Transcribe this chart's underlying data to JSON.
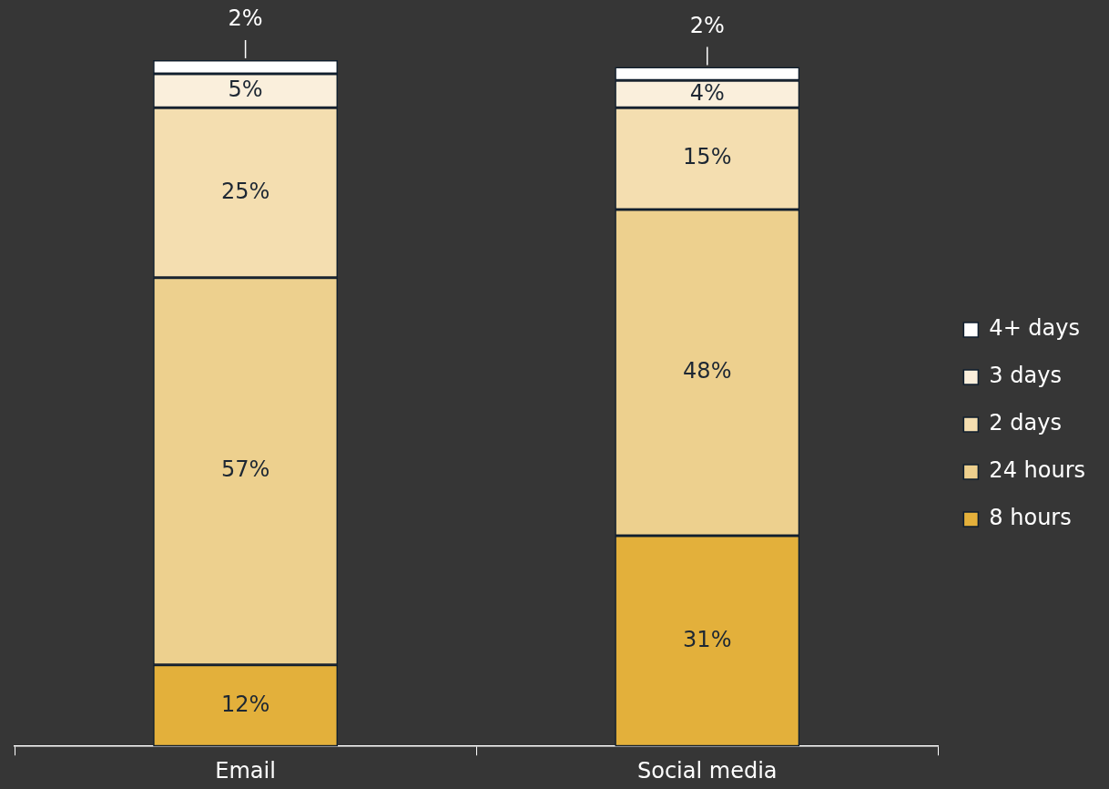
{
  "chart_data": {
    "type": "bar",
    "stacked": true,
    "categories": [
      "Email",
      "Social media"
    ],
    "series": [
      {
        "name": "8 hours",
        "color": "#e3b03b",
        "values": [
          12,
          31
        ],
        "value_labels": [
          "12%",
          "31%"
        ]
      },
      {
        "name": "24 hours",
        "color": "#edd08e",
        "values": [
          57,
          48
        ],
        "value_labels": [
          "57%",
          "48%"
        ]
      },
      {
        "name": "2 days",
        "color": "#f4deb0",
        "values": [
          25,
          15
        ],
        "value_labels": [
          "25%",
          "15%"
        ]
      },
      {
        "name": "3 days",
        "color": "#faefdc",
        "values": [
          5,
          4
        ],
        "value_labels": [
          "5%",
          "4%"
        ]
      },
      {
        "name": "4+ days",
        "color": "#ffffff",
        "values": [
          2,
          2
        ],
        "value_labels": [
          "2%",
          "2%"
        ]
      }
    ],
    "legend": "right",
    "grid": false,
    "tick_labels": "x"
  }
}
